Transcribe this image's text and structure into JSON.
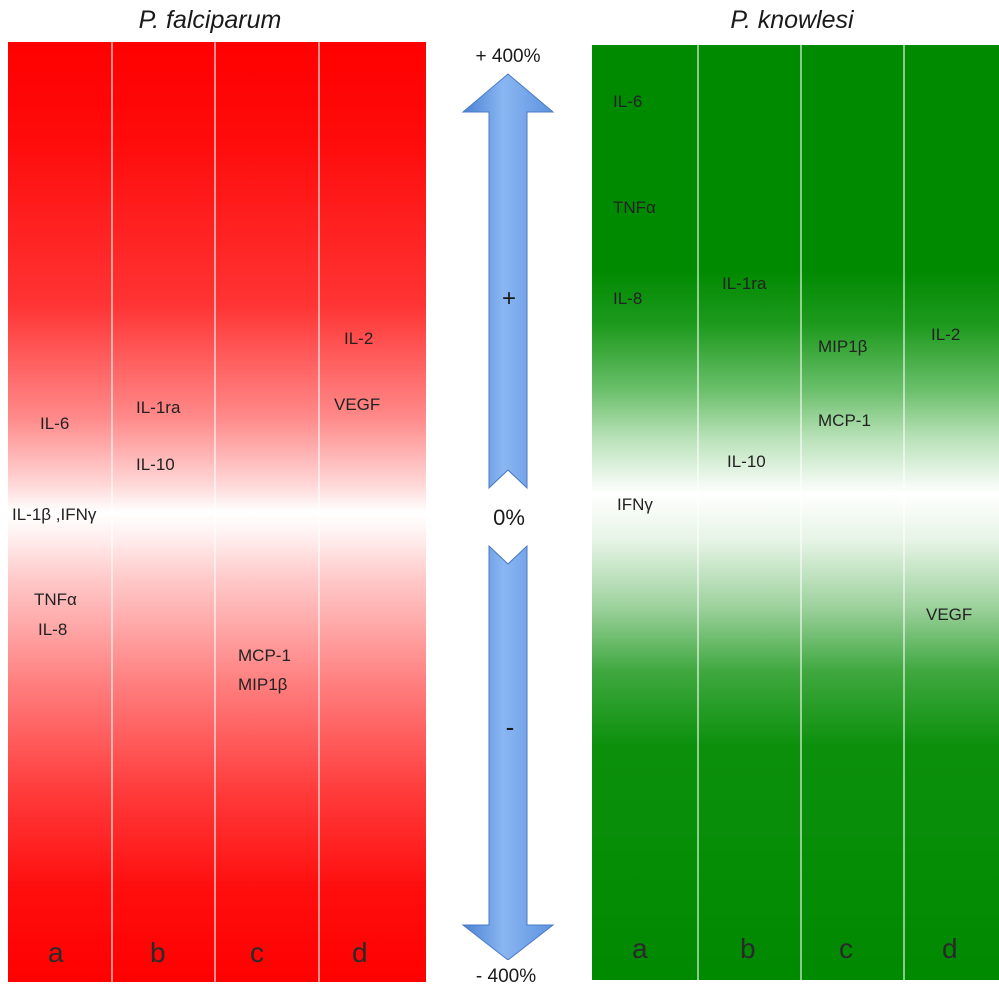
{
  "panels": {
    "pf": {
      "title": "P. falciparum",
      "labels": {
        "a1": "IL-6",
        "a2": "IL-1β ,IFNγ",
        "a3": "TNFα",
        "a4": "IL-8",
        "b1": "IL-1ra",
        "b2": "IL-10",
        "c1": "MCP-1",
        "c2": "MIP1β",
        "d1": "IL-2",
        "d2": "VEGF"
      },
      "columns": [
        "a",
        "b",
        "c",
        "d"
      ],
      "color": "#ff0000"
    },
    "pk": {
      "title": "P. knowlesi",
      "labels": {
        "a1": "IL-6",
        "a2": "TNFα",
        "a3": "IL-8",
        "a4": "IFNγ",
        "b1": "IL-1ra",
        "b2": "IL-10",
        "c1": "MIP1β",
        "c2": "MCP-1",
        "d1": "IL-2",
        "d2": "VEGF"
      },
      "columns": [
        "a",
        "b",
        "c",
        "d"
      ],
      "color": "#008a00"
    }
  },
  "scale": {
    "top": "+ 400%",
    "middle": "0%",
    "bottom": "- 400%",
    "plus": "+",
    "minus": "-",
    "arrow_color": "#6d9fe6"
  }
}
